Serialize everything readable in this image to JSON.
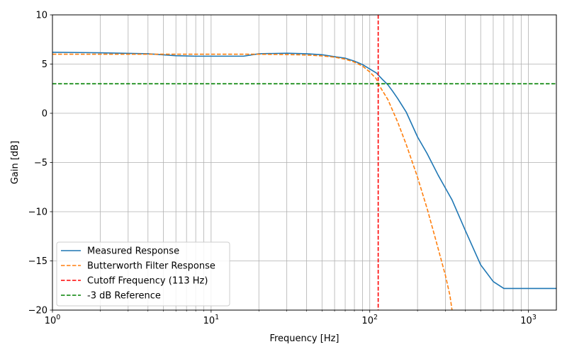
{
  "chart_data": {
    "type": "line",
    "xlabel": "Frequency [Hz]",
    "ylabel": "Gain [dB]",
    "xscale": "log",
    "xlim": [
      1,
      1500
    ],
    "ylim": [
      -20,
      10
    ],
    "grid": "both-major-minor",
    "legend_position": "lower-left",
    "x_ticks": [
      {
        "value": 1,
        "base": "10",
        "exp": "0"
      },
      {
        "value": 10,
        "base": "10",
        "exp": "1"
      },
      {
        "value": 100,
        "base": "10",
        "exp": "2"
      },
      {
        "value": 1000,
        "base": "10",
        "exp": "3"
      }
    ],
    "y_ticks": [
      {
        "value": -20,
        "label": "−20"
      },
      {
        "value": -15,
        "label": "−15"
      },
      {
        "value": -10,
        "label": "−10"
      },
      {
        "value": -5,
        "label": "−5"
      },
      {
        "value": 0,
        "label": "0"
      },
      {
        "value": 5,
        "label": "5"
      },
      {
        "value": 10,
        "label": "10"
      }
    ],
    "series": [
      {
        "name": "Measured Response",
        "color": "#1f77b4",
        "dash": "solid",
        "x": [
          1,
          2,
          4,
          6,
          8,
          10,
          16,
          20,
          30,
          40,
          50,
          60,
          70,
          80,
          90,
          100,
          110,
          120,
          130,
          140,
          150,
          170,
          200,
          230,
          270,
          330,
          400,
          500,
          600,
          700,
          800,
          1000,
          1200,
          1500
        ],
        "y": [
          6.2,
          6.15,
          6.05,
          5.85,
          5.8,
          5.8,
          5.8,
          6.05,
          6.1,
          6.05,
          5.95,
          5.75,
          5.6,
          5.3,
          4.95,
          4.5,
          4.1,
          3.45,
          2.9,
          2.2,
          1.5,
          0.1,
          -2.4,
          -4.1,
          -6.3,
          -8.8,
          -11.9,
          -15.4,
          -17.1,
          -17.8,
          -17.8,
          -17.8,
          -17.8,
          -17.8
        ]
      },
      {
        "name": "Butterworth Filter Response",
        "color": "#ff7f0e",
        "dash": "dashed",
        "x": [
          1,
          2,
          5,
          10,
          20,
          30,
          40,
          50,
          60,
          70,
          80,
          90,
          100,
          110,
          113,
          130,
          150,
          170,
          200,
          230,
          260,
          300,
          320,
          330
        ],
        "y": [
          6.0,
          6.0,
          6.0,
          6.0,
          6.0,
          5.97,
          5.92,
          5.83,
          5.7,
          5.5,
          5.2,
          4.8,
          4.2,
          3.5,
          3.0,
          1.4,
          -0.9,
          -3.2,
          -6.5,
          -9.7,
          -12.8,
          -16.5,
          -18.5,
          -20
        ]
      },
      {
        "name": "Cutoff Frequency (113 Hz)",
        "color": "#ff0000",
        "dash": "dashed",
        "type": "vline",
        "x_value": 113
      },
      {
        "name": "-3 dB Reference",
        "color": "#008000",
        "dash": "dashed",
        "type": "hline",
        "y_value": 3.0
      }
    ]
  }
}
